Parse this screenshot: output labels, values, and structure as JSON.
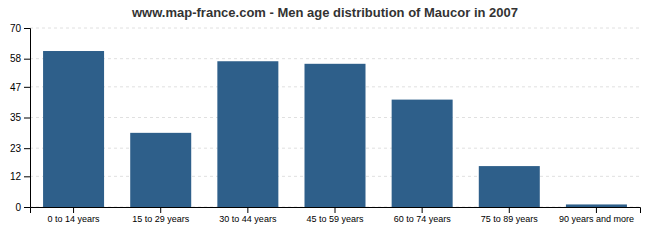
{
  "chart_data": {
    "type": "bar",
    "title": "www.map-france.com - Men age distribution of Maucor in 2007",
    "categories": [
      "0 to 14 years",
      "15 to 29 years",
      "30 to 44 years",
      "45 to 59 years",
      "60 to 74 years",
      "75 to 89 years",
      "90 years and more"
    ],
    "values": [
      61,
      29,
      57,
      56,
      42,
      16,
      1
    ],
    "color": "#2e5f8a",
    "ylim": [
      0,
      70
    ],
    "yticks": [
      0,
      12,
      23,
      35,
      47,
      58,
      70
    ],
    "grid": true
  }
}
